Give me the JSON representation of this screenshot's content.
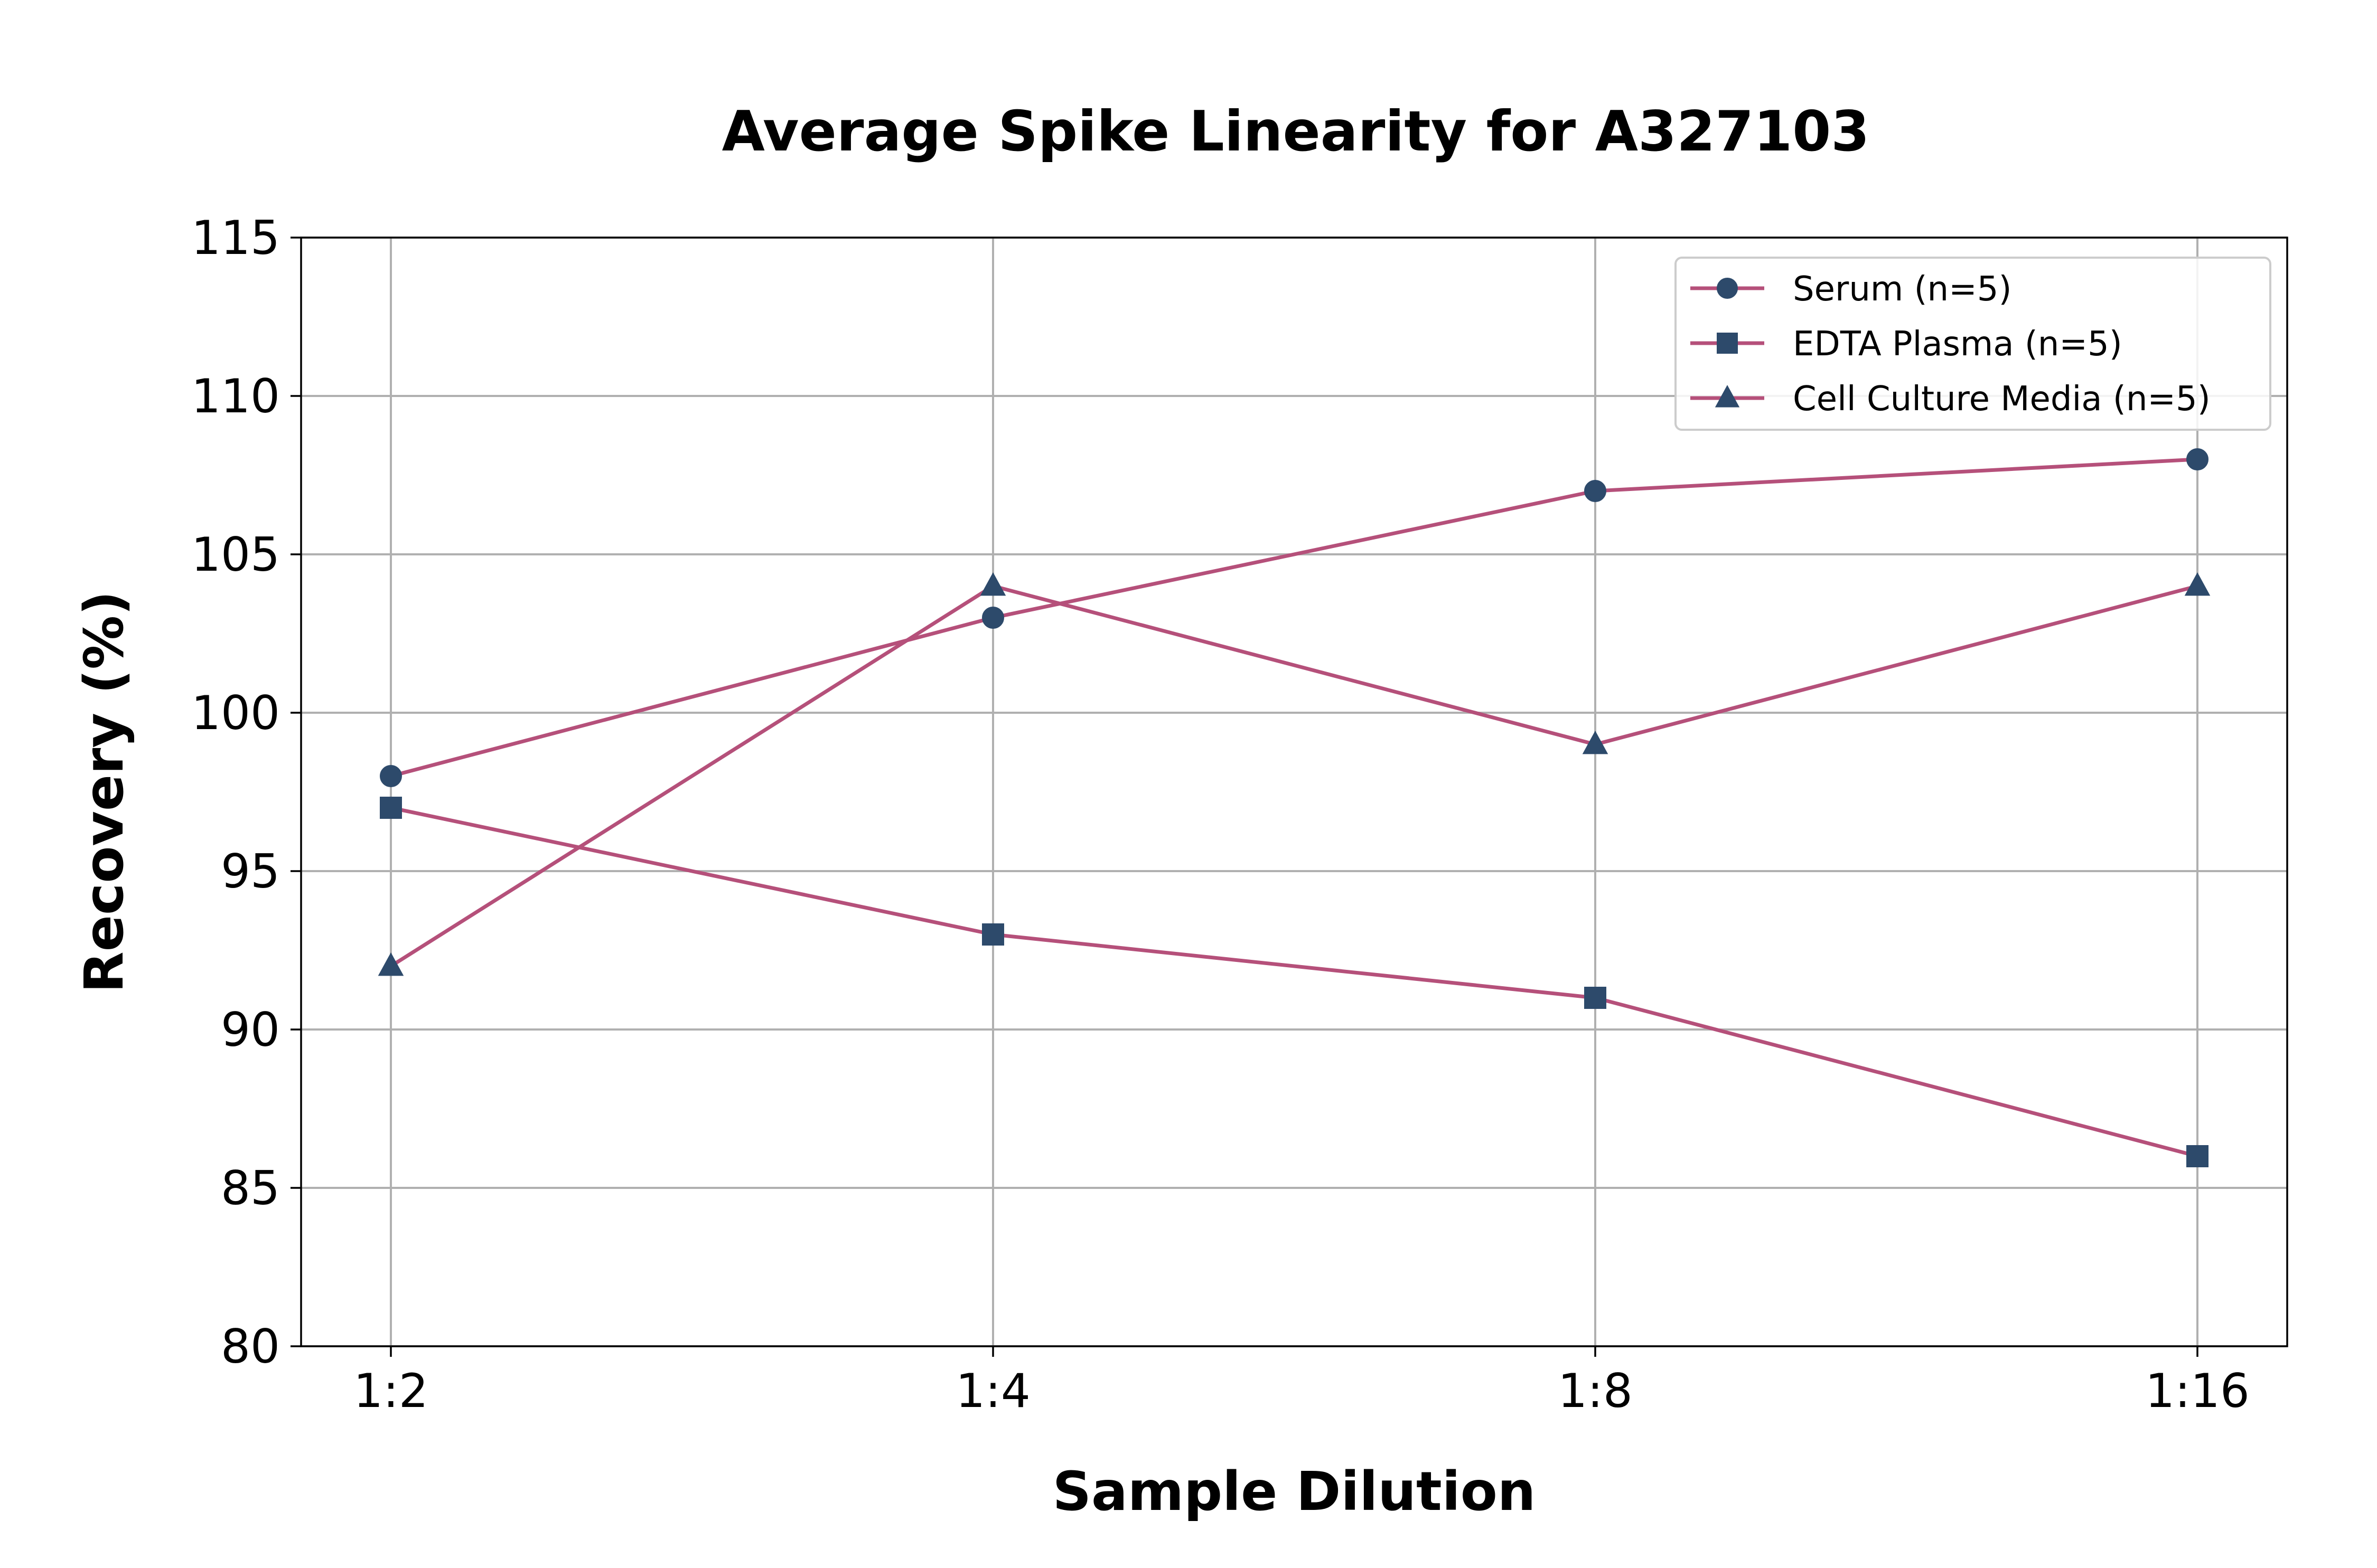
{
  "chart_data": {
    "type": "line",
    "title": "Average Spike Linearity for A327103",
    "xlabel": "Sample Dilution",
    "ylabel": "Recovery (%)",
    "categories": [
      "1:2",
      "1:4",
      "1:8",
      "1:16"
    ],
    "ylim": [
      80,
      115
    ],
    "yticks": [
      80,
      85,
      90,
      95,
      100,
      105,
      110,
      115
    ],
    "grid": true,
    "legend_position": "top-right",
    "line_color": "#b5507a",
    "marker_color": "#2d4a6b",
    "series": [
      {
        "name": "Serum (n=5)",
        "marker": "circle",
        "values": [
          98,
          103,
          107,
          108
        ]
      },
      {
        "name": "EDTA Plasma (n=5)",
        "marker": "square",
        "values": [
          97,
          93,
          91,
          86
        ]
      },
      {
        "name": "Cell Culture Media (n=5)",
        "marker": "triangle",
        "values": [
          92,
          104,
          99,
          104
        ]
      }
    ]
  }
}
